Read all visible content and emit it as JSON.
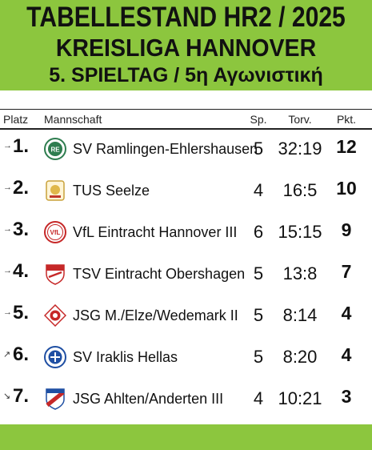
{
  "header": {
    "line1": "TABELLESTAND HR2 / 2025",
    "line2": "KREISLIGA HANNOVER",
    "line3": "5. SPIELTAG / 5η Αγωνιστική"
  },
  "columns": {
    "platz": "Platz",
    "mannschaft": "Mannschaft",
    "sp": "Sp.",
    "torv": "Torv.",
    "pkt": "Pkt."
  },
  "rows": [
    {
      "rank": "1.",
      "trend": "→",
      "team": "SV Ramlingen-Ehlershausen",
      "sp": "5",
      "torv": "32:19",
      "pkt": "12",
      "logo_icon": "sv-ramlingen-crest-icon"
    },
    {
      "rank": "2.",
      "trend": "→",
      "team": "TUS Seelze",
      "sp": "4",
      "torv": "16:5",
      "pkt": "10",
      "logo_icon": "tus-seelze-crest-icon"
    },
    {
      "rank": "3.",
      "trend": "→",
      "team": "VfL Eintracht Hannover III",
      "sp": "6",
      "torv": "15:15",
      "pkt": "9",
      "logo_icon": "vfl-eintracht-crest-icon"
    },
    {
      "rank": "4.",
      "trend": "→",
      "team": "TSV Eintracht Obershagen",
      "sp": "5",
      "torv": "13:8",
      "pkt": "7",
      "logo_icon": "tsv-obershagen-crest-icon"
    },
    {
      "rank": "5.",
      "trend": "→",
      "team": "JSG M./Elze/Wedemark II",
      "sp": "5",
      "torv": "8:14",
      "pkt": "4",
      "logo_icon": "jsg-wedemark-crest-icon"
    },
    {
      "rank": "6.",
      "trend": "↗",
      "team": "SV Iraklis Hellas",
      "sp": "5",
      "torv": "8:20",
      "pkt": "4",
      "logo_icon": "sv-iraklis-crest-icon"
    },
    {
      "rank": "7.",
      "trend": "↘",
      "team": "JSG Ahlten/Anderten III",
      "sp": "4",
      "torv": "10:21",
      "pkt": "3",
      "logo_icon": "jsg-ahlten-crest-icon"
    }
  ],
  "colors": {
    "accent_green": "#8cc63e",
    "text": "#111111"
  }
}
